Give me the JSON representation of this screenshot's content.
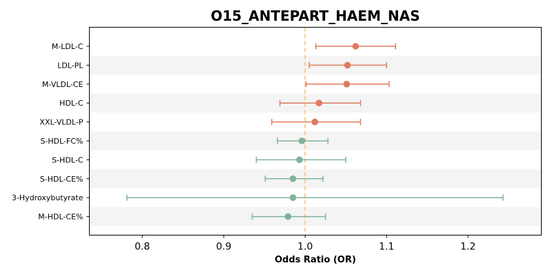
{
  "chart_data": {
    "type": "forest",
    "title": "O15_ANTEPART_HAEM_NAS",
    "xlabel": "Odds Ratio (OR)",
    "ylabel": "",
    "xlim": [
      0.735,
      1.29
    ],
    "xticks": [
      0.8,
      0.9,
      1.0,
      1.1,
      1.2
    ],
    "xtick_labels": [
      "0.8",
      "0.9",
      "1.0",
      "1.1",
      "1.2"
    ],
    "reference_line": 1.0,
    "reference_line_color": "#f4c27f",
    "stripe_color": "#f4f4f4",
    "colors": {
      "positive": "#e07a5f",
      "negative": "#81b29a"
    },
    "grid": false,
    "rows": [
      {
        "label": "M-LDL-C",
        "or": 1.062,
        "lo": 1.013,
        "hi": 1.111,
        "group": "positive"
      },
      {
        "label": "LDL-PL",
        "or": 1.052,
        "lo": 1.005,
        "hi": 1.1,
        "group": "positive"
      },
      {
        "label": "M-VLDL-CE",
        "or": 1.051,
        "lo": 1.001,
        "hi": 1.103,
        "group": "positive"
      },
      {
        "label": "HDL-C",
        "or": 1.017,
        "lo": 0.969,
        "hi": 1.068,
        "group": "positive"
      },
      {
        "label": "XXL-VLDL-P",
        "or": 1.012,
        "lo": 0.959,
        "hi": 1.068,
        "group": "positive"
      },
      {
        "label": "S-HDL-FC%",
        "or": 0.996,
        "lo": 0.966,
        "hi": 1.028,
        "group": "negative"
      },
      {
        "label": "S-HDL-C",
        "or": 0.993,
        "lo": 0.94,
        "hi": 1.05,
        "group": "negative"
      },
      {
        "label": "S-HDL-CE%",
        "or": 0.985,
        "lo": 0.951,
        "hi": 1.022,
        "group": "negative"
      },
      {
        "label": "3-Hydroxybutyrate",
        "or": 0.985,
        "lo": 0.781,
        "hi": 1.243,
        "group": "negative"
      },
      {
        "label": "M-HDL-CE%",
        "or": 0.979,
        "lo": 0.935,
        "hi": 1.025,
        "group": "negative"
      }
    ]
  }
}
